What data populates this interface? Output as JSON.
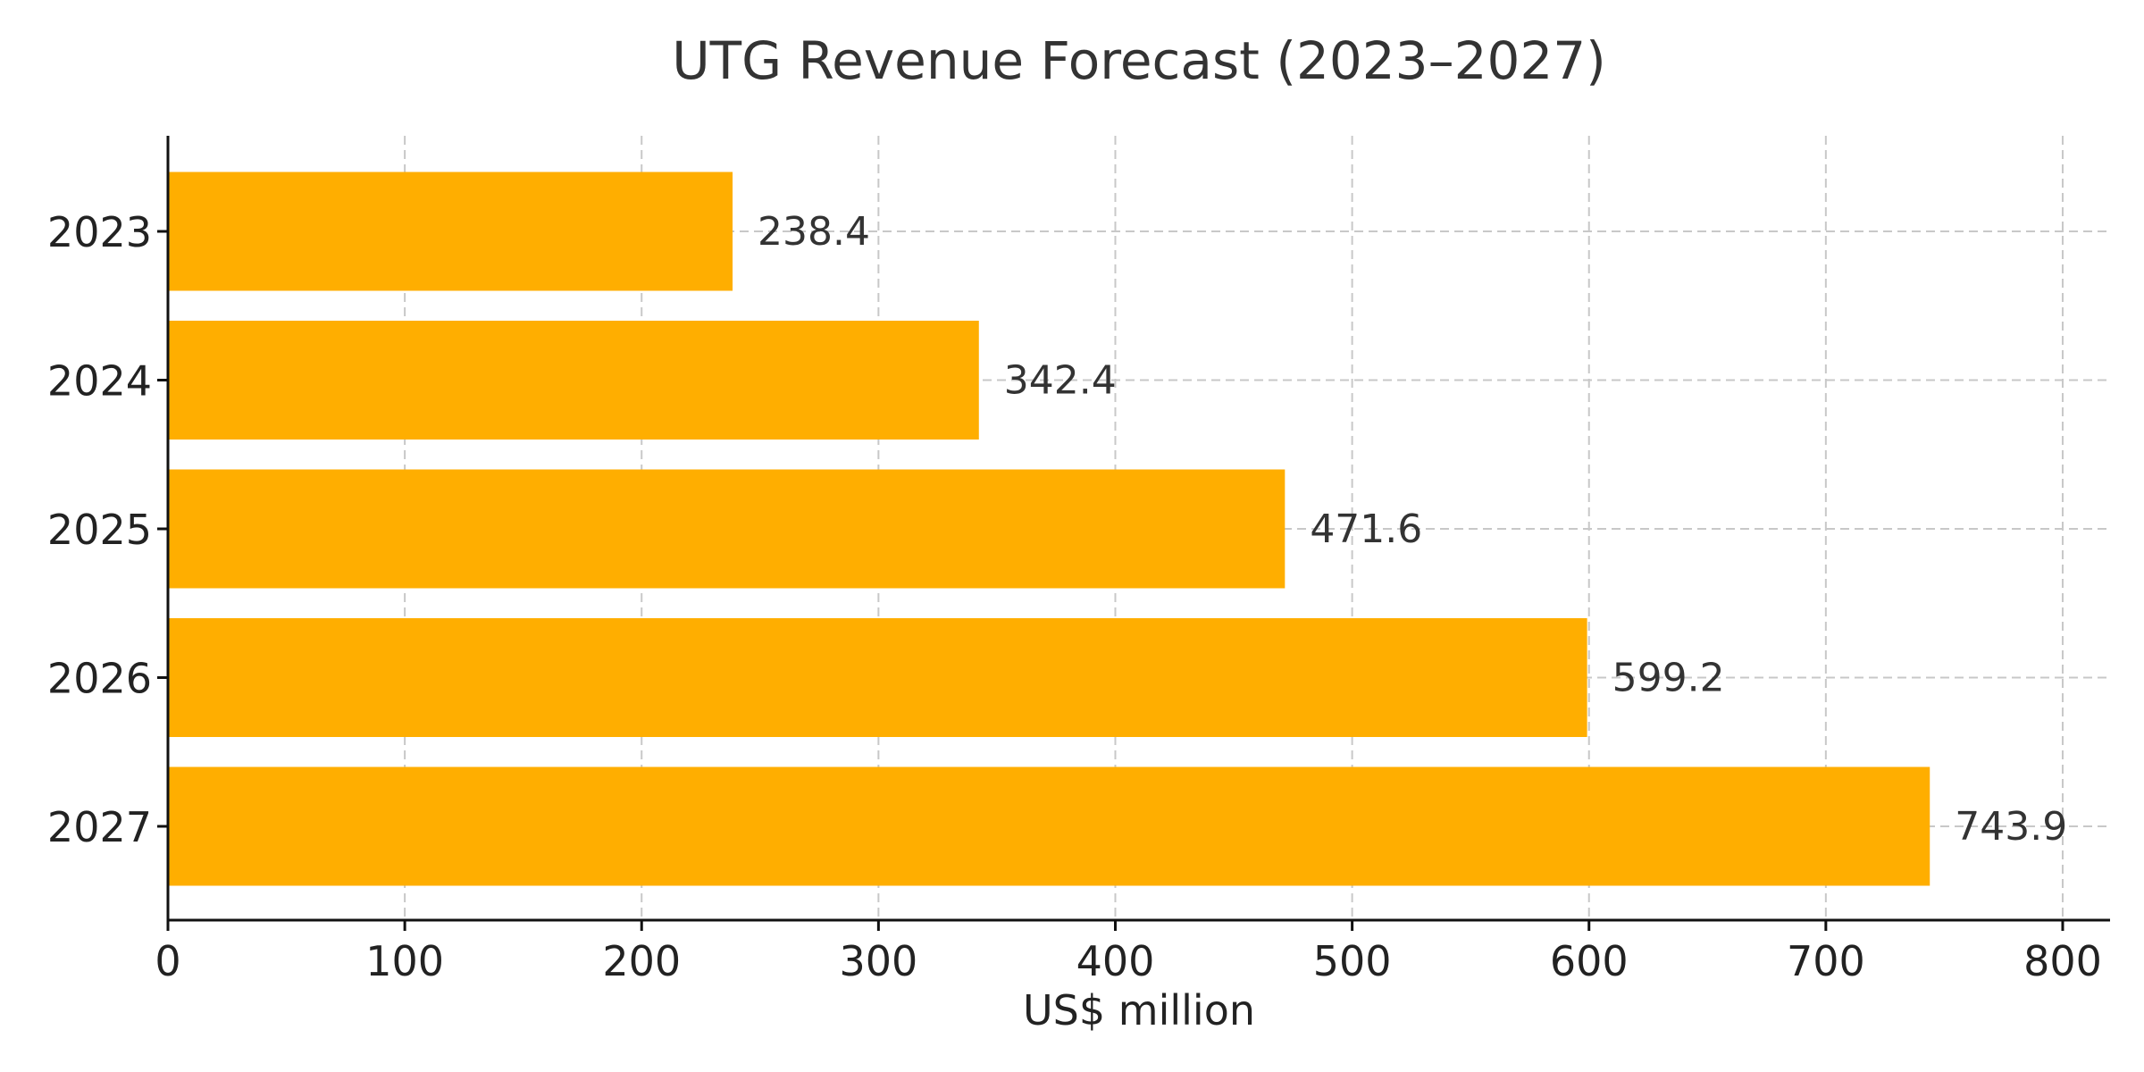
{
  "chart_data": {
    "type": "bar",
    "orientation": "horizontal",
    "title": "UTG Revenue Forecast (2023–2027)",
    "xlabel": "US$ million",
    "ylabel": "",
    "categories": [
      "2023",
      "2024",
      "2025",
      "2026",
      "2027"
    ],
    "values": [
      238.4,
      342.4,
      471.6,
      599.2,
      743.9
    ],
    "value_labels": [
      "238.4",
      "342.4",
      "471.6",
      "599.2",
      "743.9"
    ],
    "xlim": [
      0,
      820
    ],
    "xticks": [
      0,
      100,
      200,
      300,
      400,
      500,
      600,
      700,
      800
    ],
    "xtick_labels": [
      "0",
      "100",
      "200",
      "300",
      "400",
      "500",
      "600",
      "700",
      "800"
    ],
    "grid": true,
    "bar_color": "#FFAE00",
    "grid_color": "#c8c8c8",
    "axis_color": "#111111"
  }
}
